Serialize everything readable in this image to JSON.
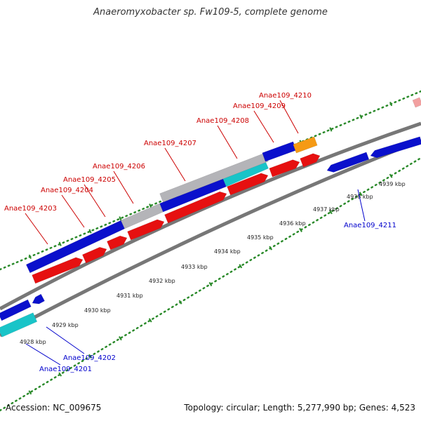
{
  "title": "Anaeromyxobacter sp. Fw109-5, complete genome",
  "footer": {
    "accession": "Accession: NC_009675",
    "summary": "Topology: circular; Length: 5,277,990 bp; Genes: 4,523"
  },
  "colors": {
    "forward_label": "#cc0000",
    "reverse_label": "#0000cc",
    "blue_gene": "#0a10cc",
    "red_gene": "#e61010",
    "cyan_gene": "#19c4c8",
    "orange_gene": "#f59a14",
    "gray_gene": "#b4b4b8",
    "pink_gene": "#f2a0a0",
    "backbone": "#777777",
    "dot_track": "#2a8a2a"
  },
  "tick_labels": [
    {
      "text": "4928 kbp"
    },
    {
      "text": "4929 kbp"
    },
    {
      "text": "4930 kbp"
    },
    {
      "text": "4931 kbp"
    },
    {
      "text": "4932 kbp"
    },
    {
      "text": "4933 kbp"
    },
    {
      "text": "4934 kbp"
    },
    {
      "text": "4935 kbp"
    },
    {
      "text": "4936 kbp"
    },
    {
      "text": "4937 kbp"
    },
    {
      "text": "4938 kbp"
    },
    {
      "text": "4939 kbp"
    }
  ],
  "gene_labels": [
    {
      "text": "Anae109_4203",
      "strand": "forward"
    },
    {
      "text": "Anae109_4204",
      "strand": "forward"
    },
    {
      "text": "Anae109_4205",
      "strand": "forward"
    },
    {
      "text": "Anae109_4206",
      "strand": "forward"
    },
    {
      "text": "Anae109_4207",
      "strand": "forward"
    },
    {
      "text": "Anae109_4208",
      "strand": "forward"
    },
    {
      "text": "Anae109_4209",
      "strand": "forward"
    },
    {
      "text": "Anae109_4210",
      "strand": "forward"
    },
    {
      "text": "Anae109_4211",
      "strand": "reverse"
    },
    {
      "text": "Anae109_4202",
      "strand": "reverse"
    },
    {
      "text": "Anae109_4201",
      "strand": "reverse"
    }
  ]
}
